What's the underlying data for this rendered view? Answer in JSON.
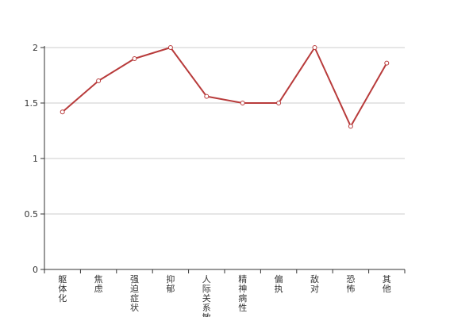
{
  "chart_data": {
    "type": "line",
    "categories": [
      "躯体化",
      "焦虑",
      "强迫症状",
      "抑郁",
      "人际关系敏感",
      "精神病性",
      "偏执",
      "敌对",
      "恐怖",
      "其他"
    ],
    "series": [
      {
        "values": [
          1.42,
          1.7,
          1.9,
          2.0,
          1.56,
          1.5,
          1.5,
          2.0,
          1.29,
          1.86
        ]
      }
    ],
    "yticks": [
      "0",
      "0.5",
      "1",
      "1.5",
      "2"
    ],
    "ylim": [
      0,
      2
    ],
    "grid": true,
    "line_color": "#b83b3b"
  }
}
